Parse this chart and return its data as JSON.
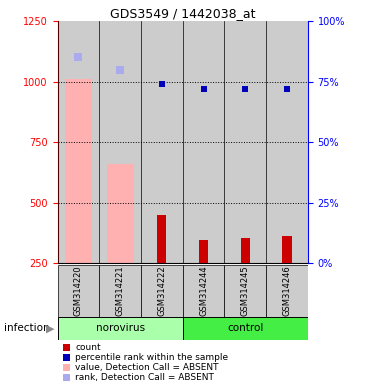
{
  "title": "GDS3549 / 1442038_at",
  "samples": [
    "GSM314220",
    "GSM314221",
    "GSM314222",
    "GSM314244",
    "GSM314245",
    "GSM314246"
  ],
  "count_values": [
    250,
    250,
    450,
    345,
    355,
    360
  ],
  "value_absent": [
    1010,
    660,
    null,
    null,
    null,
    null
  ],
  "rank_absent_left": [
    1100,
    1050,
    null,
    null,
    null,
    null
  ],
  "percentile_values_left": [
    null,
    null,
    990,
    970,
    970,
    970
  ],
  "ylim_left": [
    250,
    1250
  ],
  "ylim_right": [
    0,
    100
  ],
  "yticks_left": [
    250,
    500,
    750,
    1000,
    1250
  ],
  "yticks_right": [
    0,
    25,
    50,
    75,
    100
  ],
  "color_count": "#cc0000",
  "color_percentile": "#0000bb",
  "color_value_absent": "#ffb0b0",
  "color_rank_absent": "#aaaaee",
  "color_norovirus_bg": "#aaffaa",
  "color_control_bg": "#44ee44",
  "color_sample_bg": "#cccccc",
  "legend_items": [
    {
      "color": "#cc0000",
      "label": "count"
    },
    {
      "color": "#0000bb",
      "label": "percentile rank within the sample"
    },
    {
      "color": "#ffb0b0",
      "label": "value, Detection Call = ABSENT"
    },
    {
      "color": "#aaaaee",
      "label": "rank, Detection Call = ABSENT"
    }
  ]
}
